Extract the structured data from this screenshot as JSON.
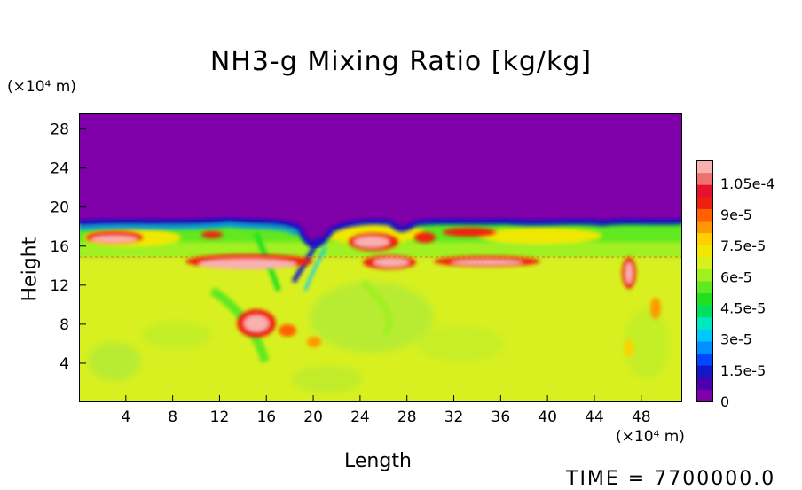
{
  "chart_data": {
    "type": "heatmap",
    "title": "NH3-g Mixing Ratio [kg/kg]",
    "xlabel": "Length",
    "ylabel": "Height",
    "x_unit": "(×10⁴ m)",
    "y_unit": "(×10⁴ m)",
    "xlim": [
      0,
      51.5
    ],
    "ylim": [
      0,
      29.6
    ],
    "x_ticks": [
      "4",
      "8",
      "12",
      "16",
      "20",
      "24",
      "28",
      "32",
      "36",
      "40",
      "44",
      "48"
    ],
    "y_ticks": [
      "4",
      "8",
      "12",
      "16",
      "20",
      "24",
      "28"
    ],
    "colorbar": {
      "ticks": [
        "0",
        "1.5e-5",
        "3e-5",
        "4.5e-5",
        "6e-5",
        "7.5e-5",
        "9e-5",
        "1.05e-4"
      ],
      "min": 0,
      "max": 0.000116,
      "colors": [
        "#7f00a8",
        "#4b00b0",
        "#1018c8",
        "#0048ff",
        "#0090ff",
        "#00c8ff",
        "#00e8c0",
        "#00e060",
        "#20e020",
        "#60e820",
        "#a0f020",
        "#d8f020",
        "#f0e800",
        "#ffd000",
        "#ff9800",
        "#ff6000",
        "#f02010",
        "#e81030",
        "#f07070",
        "#f8b0b0"
      ]
    },
    "regions": [
      {
        "desc": "upper layer",
        "y_range": [
          18.5,
          29.6
        ],
        "value": 0
      },
      {
        "desc": "lower atmosphere",
        "y_range": [
          0,
          14.5
        ],
        "value": 7.8e-05
      },
      {
        "desc": "band",
        "y_range": [
          15,
          18
        ],
        "value": 6e-05
      }
    ]
  },
  "time": "TIME = 7700000.0"
}
